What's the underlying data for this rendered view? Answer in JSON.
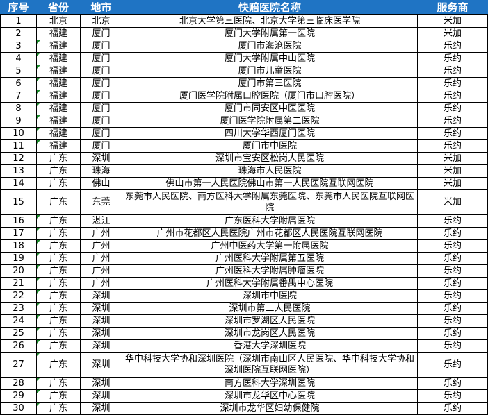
{
  "colors": {
    "header_bg": "#1f74c4",
    "marker": "#1a8a2a"
  },
  "headers": [
    "序号",
    "省份",
    "地市",
    "快赔医院名称",
    "服务商"
  ],
  "rows": [
    {
      "no": "1",
      "prov": "北京",
      "city": "北京",
      "name": "北京大学第三医院、北京大学第三临床医学院",
      "vendor": "米加",
      "mark": false
    },
    {
      "no": "2",
      "prov": "福建",
      "city": "厦门",
      "name": "厦门大学附属第一医院",
      "vendor": "米加",
      "mark": false
    },
    {
      "no": "3",
      "prov": "福建",
      "city": "厦门",
      "name": "厦门市海沧医院",
      "vendor": "乐约",
      "mark": true
    },
    {
      "no": "4",
      "prov": "福建",
      "city": "厦门",
      "name": "厦门大学附属中山医院",
      "vendor": "乐约",
      "mark": true
    },
    {
      "no": "5",
      "prov": "福建",
      "city": "厦门",
      "name": "厦门市儿童医院",
      "vendor": "乐约",
      "mark": true
    },
    {
      "no": "6",
      "prov": "福建",
      "city": "厦门",
      "name": "厦门市第三医院",
      "vendor": "乐约",
      "mark": true
    },
    {
      "no": "7",
      "prov": "福建",
      "city": "厦门",
      "name": "厦门医学院附属口腔医院（厦门市口腔医院）",
      "vendor": "乐约",
      "mark": true
    },
    {
      "no": "8",
      "prov": "福建",
      "city": "厦门",
      "name": "厦门市同安区中医医院",
      "vendor": "乐约",
      "mark": true
    },
    {
      "no": "9",
      "prov": "福建",
      "city": "厦门",
      "name": "厦门医学院附属第二医院",
      "vendor": "乐约",
      "mark": true
    },
    {
      "no": "10",
      "prov": "福建",
      "city": "厦门",
      "name": "四川大学华西厦门医院",
      "vendor": "乐约",
      "mark": true
    },
    {
      "no": "11",
      "prov": "福建",
      "city": "厦门",
      "name": "厦门市中医院",
      "vendor": "乐约",
      "mark": true
    },
    {
      "no": "12",
      "prov": "广东",
      "city": "深圳",
      "name": "深圳市宝安区松岗人民医院",
      "vendor": "米加",
      "mark": false
    },
    {
      "no": "13",
      "prov": "广东",
      "city": "珠海",
      "name": "珠海市人民医院",
      "vendor": "米加",
      "mark": false
    },
    {
      "no": "14",
      "prov": "广东",
      "city": "佛山",
      "name": "佛山市第一人民医院佛山市第一人民医院互联网医院",
      "vendor": "米加",
      "mark": false
    },
    {
      "no": "15",
      "prov": "广东",
      "city": "东莞",
      "name": "东莞市人民医院、南方医科大学附属东莞医院、东莞市人民医院互联网医院",
      "vendor": "米加",
      "mark": false,
      "tall": true
    },
    {
      "no": "16",
      "prov": "广东",
      "city": "湛江",
      "name": "广东医科大学附属医院",
      "vendor": "乐约",
      "mark": true
    },
    {
      "no": "17",
      "prov": "广东",
      "city": "广州",
      "name": "广州市花都区人民医院广州市花都区人民医院互联网医院",
      "vendor": "乐约",
      "mark": true
    },
    {
      "no": "18",
      "prov": "广东",
      "city": "广州",
      "name": "广州中医药大学第一附属医院",
      "vendor": "乐约",
      "mark": true
    },
    {
      "no": "19",
      "prov": "广东",
      "city": "广州",
      "name": "广州医科大学附属第五医院",
      "vendor": "乐约",
      "mark": true
    },
    {
      "no": "20",
      "prov": "广东",
      "city": "广州",
      "name": "广州医科大学附属肿瘤医院",
      "vendor": "乐约",
      "mark": true
    },
    {
      "no": "21",
      "prov": "广东",
      "city": "广州",
      "name": "广州医科大学附属番禺中心医院",
      "vendor": "乐约",
      "mark": true
    },
    {
      "no": "22",
      "prov": "广东",
      "city": "深圳",
      "name": "深圳市中医院",
      "vendor": "乐约",
      "mark": true
    },
    {
      "no": "23",
      "prov": "广东",
      "city": "深圳",
      "name": "深圳市第二人民医院",
      "vendor": "乐约",
      "mark": true
    },
    {
      "no": "24",
      "prov": "广东",
      "city": "深圳",
      "name": "深圳市罗湖区人民医院",
      "vendor": "乐约",
      "mark": true
    },
    {
      "no": "25",
      "prov": "广东",
      "city": "深圳",
      "name": "深圳市龙岗区人民医院",
      "vendor": "乐约",
      "mark": true
    },
    {
      "no": "26",
      "prov": "广东",
      "city": "深圳",
      "name": "香港大学深圳医院",
      "vendor": "乐约",
      "mark": true
    },
    {
      "no": "27",
      "prov": "广东",
      "city": "深圳",
      "name": "华中科技大学协和深圳医院（深圳市南山区人民医院、华中科技大学协和深圳医院互联网医院）",
      "vendor": "乐约",
      "mark": true,
      "tall": true
    },
    {
      "no": "28",
      "prov": "广东",
      "city": "深圳",
      "name": "南方医科大学深圳医院",
      "vendor": "乐约",
      "mark": true
    },
    {
      "no": "29",
      "prov": "广东",
      "city": "深圳",
      "name": "深圳市龙华区中心医院",
      "vendor": "乐约",
      "mark": true
    },
    {
      "no": "30",
      "prov": "广东",
      "city": "深圳",
      "name": "深圳市龙华区妇幼保健院",
      "vendor": "乐约",
      "mark": true
    }
  ]
}
